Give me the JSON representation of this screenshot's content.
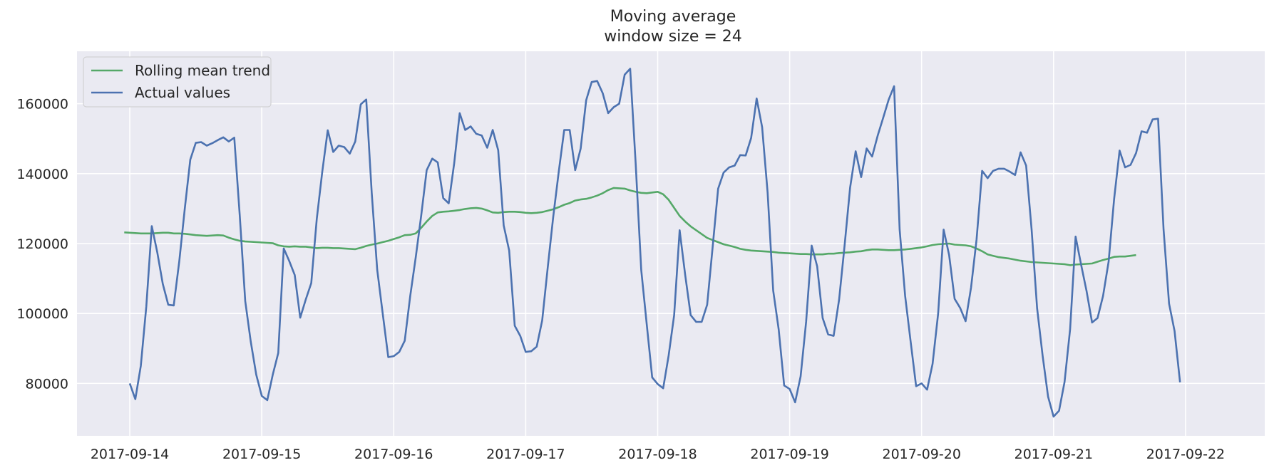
{
  "chart_data": {
    "type": "line",
    "title": "Moving average",
    "subtitle": "window size = 24",
    "xlabel": "",
    "ylabel": "",
    "x_start_label": "2017-09-13 23:00",
    "x_step": "1h",
    "xlim_days": [
      -0.4,
      8.6
    ],
    "ylim": [
      65000,
      175000
    ],
    "xticks": [
      "2017-09-14",
      "2017-09-15",
      "2017-09-16",
      "2017-09-17",
      "2017-09-18",
      "2017-09-19",
      "2017-09-20",
      "2017-09-21",
      "2017-09-22"
    ],
    "yticks": [
      80000,
      100000,
      120000,
      140000,
      160000
    ],
    "grid": true,
    "legend_position": "top-left",
    "series": [
      {
        "name": "Rolling mean trend",
        "color": "#55a868",
        "values": [
          123200,
          123100,
          123000,
          122900,
          122900,
          122900,
          123000,
          123100,
          123100,
          122900,
          122900,
          122800,
          122600,
          122400,
          122300,
          122200,
          122300,
          122400,
          122300,
          121700,
          121200,
          120800,
          120600,
          120500,
          120400,
          120300,
          120200,
          120100,
          119500,
          119200,
          119100,
          119200,
          119100,
          119100,
          118900,
          118700,
          118800,
          118800,
          118700,
          118700,
          118600,
          118500,
          118400,
          118800,
          119300,
          119700,
          120000,
          120400,
          120800,
          121300,
          121800,
          122400,
          122500,
          122900,
          124500,
          126300,
          127900,
          128900,
          129100,
          129200,
          129400,
          129600,
          129900,
          130100,
          130200,
          130000,
          129500,
          128900,
          128800,
          129000,
          129100,
          129100,
          129000,
          128800,
          128700,
          128800,
          129000,
          129400,
          129800,
          130400,
          131100,
          131600,
          132300,
          132600,
          132800,
          133200,
          133700,
          134400,
          135300,
          135900,
          135800,
          135700,
          135200,
          134800,
          134500,
          134400,
          134600,
          134800,
          134100,
          132500,
          130200,
          127900,
          126300,
          124900,
          123800,
          122700,
          121600,
          121000,
          120400,
          119800,
          119400,
          119000,
          118500,
          118200,
          118000,
          117900,
          117800,
          117700,
          117600,
          117400,
          117300,
          117200,
          117100,
          117000,
          117000,
          116900,
          116900,
          116900,
          117100,
          117100,
          117300,
          117400,
          117500,
          117700,
          117800,
          118100,
          118300,
          118300,
          118200,
          118100,
          118100,
          118200,
          118300,
          118500,
          118700,
          118900,
          119200,
          119600,
          119800,
          119900,
          120000,
          119700,
          119600,
          119500,
          119200,
          118600,
          117800,
          116900,
          116500,
          116100,
          115900,
          115700,
          115400,
          115100,
          114900,
          114700,
          114600,
          114500,
          114400,
          114300,
          114200,
          114100,
          113800,
          114000,
          114100,
          114200,
          114300,
          114800,
          115300,
          115700,
          116200,
          116300,
          116300,
          116500,
          116700
        ]
      },
      {
        "name": "Actual values",
        "color": "#4c72b0",
        "values_start_offset": 1,
        "values": [
          80000,
          75500,
          85000,
          102000,
          125000,
          117500,
          108500,
          102500,
          102300,
          115000,
          130000,
          144000,
          148800,
          149000,
          148000,
          148700,
          149600,
          150400,
          149200,
          150300,
          128000,
          103500,
          92000,
          82500,
          76400,
          75200,
          82500,
          88700,
          118600,
          115000,
          111000,
          98800,
          104000,
          108700,
          127000,
          140500,
          152400,
          146200,
          148000,
          147600,
          145700,
          149200,
          159800,
          161200,
          134500,
          112500,
          100000,
          87500,
          87800,
          89000,
          92200,
          105000,
          116000,
          128000,
          141000,
          144300,
          143200,
          133000,
          131500,
          143000,
          157300,
          152500,
          153500,
          151400,
          150900,
          147400,
          152500,
          146700,
          125200,
          118000,
          96500,
          93600,
          89000,
          89200,
          90500,
          98000,
          113000,
          127500,
          140500,
          152500,
          152500,
          141000,
          147200,
          161000,
          166200,
          166500,
          163000,
          157300,
          159000,
          160000,
          168300,
          170000,
          143000,
          112500,
          97000,
          81700,
          79800,
          78600,
          88000,
          99500,
          123800,
          111000,
          99500,
          97600,
          97600,
          102500,
          119000,
          135700,
          140300,
          141800,
          142300,
          145300,
          145200,
          150200,
          161500,
          153300,
          134600,
          106600,
          95500,
          79400,
          78400,
          74600,
          82000,
          97600,
          119400,
          113500,
          98700,
          94000,
          93600,
          104000,
          119500,
          136000,
          146400,
          139000,
          147200,
          144900,
          150800,
          155900,
          161100,
          165000,
          124000,
          105000,
          92000,
          79200,
          80000,
          78200,
          85600,
          100000,
          124000,
          116700,
          104200,
          101600,
          97800,
          107500,
          121200,
          140800,
          138700,
          140800,
          141400,
          141400,
          140600,
          139600,
          146100,
          142300,
          124000,
          101500,
          88000,
          76200,
          70500,
          72200,
          80400,
          95500,
          122000,
          114000,
          106400,
          97400,
          98700,
          105000,
          114800,
          132700,
          146600,
          141800,
          142500,
          145900,
          152100,
          151700,
          155500,
          155700,
          124000,
          102800,
          95000,
          80300
        ]
      }
    ]
  },
  "legend": {
    "items": [
      "Rolling mean trend",
      "Actual values"
    ]
  },
  "colors": {
    "plot_background": "#eaeaf2",
    "grid": "#ffffff",
    "text": "#262626"
  }
}
